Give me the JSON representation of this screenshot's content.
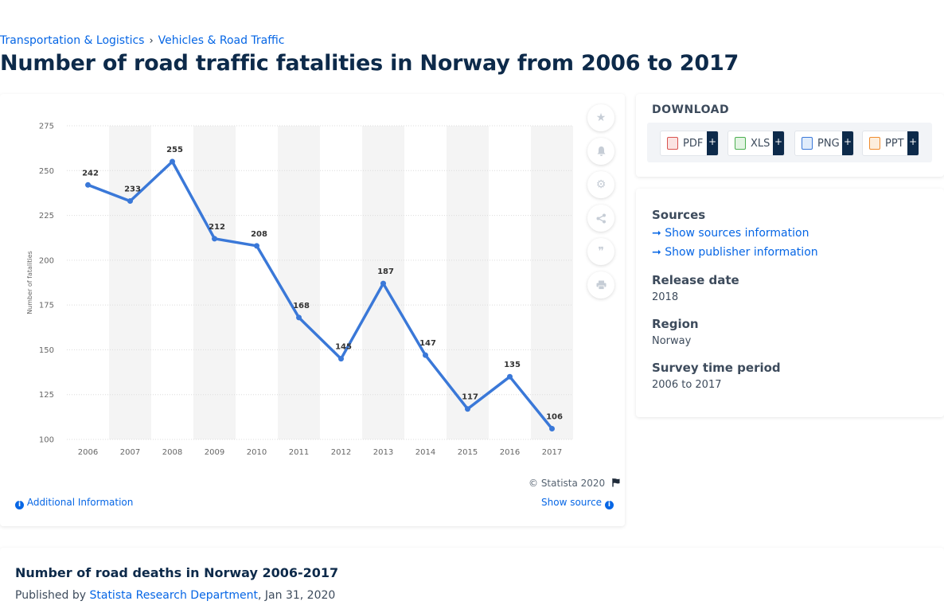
{
  "breadcrumb": [
    "Transportation & Logistics",
    "Vehicles & Road Traffic"
  ],
  "breadcrumb_sep": "›",
  "page_title": "Number of road traffic fatalities in Norway from 2006 to 2017",
  "chart_data": {
    "type": "line",
    "categories": [
      "2006",
      "2007",
      "2008",
      "2009",
      "2010",
      "2011",
      "2012",
      "2013",
      "2014",
      "2015",
      "2016",
      "2017"
    ],
    "series": [
      {
        "values": [
          242,
          233,
          255,
          212,
          208,
          168,
          145,
          187,
          147,
          117,
          135,
          106
        ]
      }
    ],
    "data_labels": [
      "242",
      "233",
      "255",
      "212",
      "208",
      "168",
      "145",
      "187",
      "147",
      "117",
      "135",
      "106"
    ],
    "ylabel": "Number of fatalities",
    "ylim": [
      100,
      275
    ],
    "yticks": [
      100,
      125,
      150,
      175,
      200,
      225,
      250,
      275
    ],
    "ytick_labels": [
      "100",
      "125",
      "150",
      "175",
      "200",
      "225",
      "250",
      "275"
    ],
    "grid": true,
    "line_color": "#3a78d8",
    "band_color": "#f4f4f4"
  },
  "tools": {
    "favorite": "star-icon",
    "notify": "bell-icon",
    "settings": "gear-icon",
    "share": "share-icon",
    "cite": "quote-icon",
    "print": "print-icon"
  },
  "copyright": "© Statista 2020",
  "additional_info": "Additional Information",
  "show_source": "Show source",
  "download": {
    "title": "DOWNLOAD",
    "buttons": [
      {
        "label": "PDF",
        "color": "#d9534f"
      },
      {
        "label": "XLS",
        "color": "#4caf50"
      },
      {
        "label": "PNG",
        "color": "#3a78d8"
      },
      {
        "label": "PPT",
        "color": "#f08c2e"
      }
    ],
    "plus": "+"
  },
  "info": {
    "sources_heading": "Sources",
    "show_sources": "Show sources information",
    "show_publisher": "Show publisher information",
    "release_heading": "Release date",
    "release_value": "2018",
    "region_heading": "Region",
    "region_value": "Norway",
    "period_heading": "Survey time period",
    "period_value": "2006 to 2017"
  },
  "bottom": {
    "title": "Number of road deaths in Norway 2006-2017",
    "published_by": "Published by",
    "publisher": "Statista Research Department",
    "date": ", Jan 31, 2020"
  }
}
